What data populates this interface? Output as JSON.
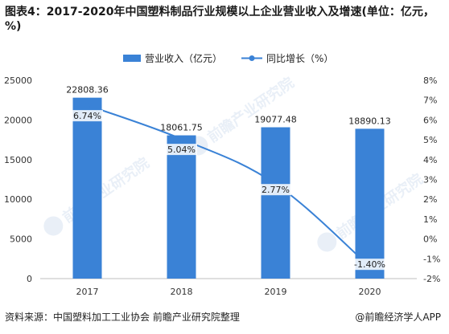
{
  "title": "图表4：2017-2020年中国塑料制品行业规模以上企业营业收入及增速(单位：亿元，%)",
  "watermarks": [
    {
      "text": "前瞻产业研究院",
      "icon": "qianzhan-logo-icon"
    },
    {
      "text": "前瞻产业研究院",
      "icon": "qianzhan-logo-icon"
    },
    {
      "text": "前瞻产业研究院",
      "icon": "qianzhan-logo-icon"
    }
  ],
  "source": {
    "left": "资料来源：中国塑料加工工业协会 前瞻产业研究院整理",
    "right": "@前瞻经济学人APP"
  },
  "colors": {
    "bar": "#3a82d6",
    "line": "#3a82d6",
    "axis": "#bfbfbf",
    "text": "#333333"
  },
  "chart_data": {
    "type": "bar+line",
    "categories": [
      "2017",
      "2018",
      "2019",
      "2020"
    ],
    "series": [
      {
        "name": "营业收入（亿元）",
        "type": "bar",
        "axis": "left",
        "values": [
          22808.36,
          18061.75,
          19077.48,
          18890.13
        ],
        "labels": [
          "22808.36",
          "18061.75",
          "19077.48",
          "18890.13"
        ]
      },
      {
        "name": "同比增长（%）",
        "type": "line",
        "axis": "right",
        "values": [
          6.74,
          5.04,
          2.77,
          -1.4
        ],
        "labels": [
          "6.74%",
          "5.04%",
          "2.77%",
          "-1.40%"
        ]
      }
    ],
    "y_left": {
      "min": 0,
      "max": 25000,
      "ticks": [
        "0",
        "5000",
        "10000",
        "15000",
        "20000",
        "25000"
      ]
    },
    "y_right": {
      "min": -2,
      "max": 8,
      "ticks": [
        "-2%",
        "-1%",
        "0%",
        "1%",
        "2%",
        "3%",
        "4%",
        "5%",
        "6%",
        "7%",
        "8%"
      ]
    },
    "legend_position": "top-center",
    "grid": false
  }
}
